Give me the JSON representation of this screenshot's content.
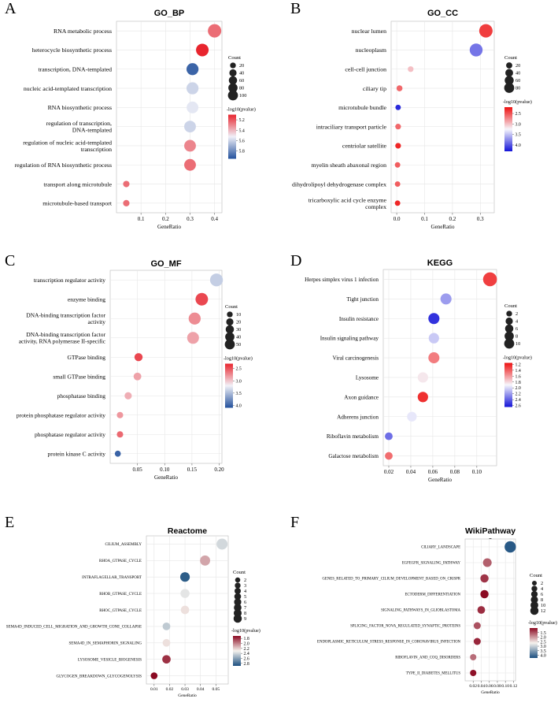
{
  "panels": [
    {
      "id": "A",
      "label": "A",
      "chart_data": {
        "type": "scatter",
        "title": "GO_BP",
        "xlabel": "GeneRatio",
        "xlim": [
          0,
          0.43
        ],
        "xticks": [
          0.1,
          0.2,
          0.3,
          0.4
        ],
        "xtick_labels": [
          "0.1",
          "0.2",
          "0.3",
          "0.4"
        ],
        "categories": [
          "RNA metabolic process",
          "heterocycle biosynthetic process",
          "transcription, DNA-templated",
          "nucleic acid-templated transcription",
          "RNA biosynthetic process",
          "regulation of transcription, DNA-templated",
          "regulation of nucleic acid-templated transcription",
          "regulation of RNA biosynthetic process",
          "transport along microtubule",
          "microtubule-based transport"
        ],
        "points": [
          {
            "x": 0.4,
            "count": 100,
            "logp": 5.25
          },
          {
            "x": 0.35,
            "count": 85,
            "logp": 5.05
          },
          {
            "x": 0.31,
            "count": 75,
            "logp": 5.9
          },
          {
            "x": 0.31,
            "count": 75,
            "logp": 5.6
          },
          {
            "x": 0.31,
            "count": 70,
            "logp": 5.55
          },
          {
            "x": 0.3,
            "count": 70,
            "logp": 5.6
          },
          {
            "x": 0.3,
            "count": 70,
            "logp": 5.3
          },
          {
            "x": 0.3,
            "count": 70,
            "logp": 5.25
          },
          {
            "x": 0.04,
            "count": 10,
            "logp": 5.25
          },
          {
            "x": 0.04,
            "count": 10,
            "logp": 5.25
          }
        ],
        "size_legend": {
          "title": "Count",
          "labels": [
            "20",
            "40",
            "60",
            "80",
            "100"
          ],
          "values": [
            20,
            40,
            60,
            80,
            100
          ]
        },
        "color_legend": {
          "title": "-log10(pvalue)",
          "labels": [
            "5.2",
            "5.4",
            "5.6",
            "5.8"
          ],
          "values": [
            5.2,
            5.4,
            5.6,
            5.8
          ],
          "range": [
            5.1,
            5.95
          ],
          "low_color": "#e8252e",
          "mid_color": "#f0f0f8",
          "high_color": "#23519c"
        }
      }
    },
    {
      "id": "B",
      "label": "B",
      "chart_data": {
        "type": "scatter",
        "title": "GO_CC",
        "xlabel": "GeneRatio",
        "xlim": [
          -0.02,
          0.35
        ],
        "xticks": [
          0.0,
          0.1,
          0.2,
          0.3
        ],
        "xtick_labels": [
          "0.0",
          "0.1",
          "0.2",
          "0.3"
        ],
        "categories": [
          "nuclear lumen",
          "nucleoplasm",
          "cell-cell junction",
          "ciliary tip",
          "microtubule bundle",
          "intraciliary transport particle",
          "centriolar satellite",
          "myelin sheath abaxonal region",
          "dihydrolipoyl dehydrogenase complex",
          "tricarboxylic acid cycle enzyme complex"
        ],
        "points": [
          {
            "x": 0.32,
            "count": 80,
            "logp": 2.4
          },
          {
            "x": 0.285,
            "count": 72,
            "logp": 3.85
          },
          {
            "x": 0.05,
            "count": 5,
            "logp": 3.0
          },
          {
            "x": 0.01,
            "count": 6,
            "logp": 2.6
          },
          {
            "x": 0.005,
            "count": 4,
            "logp": 4.2
          },
          {
            "x": 0.005,
            "count": 5,
            "logp": 2.6
          },
          {
            "x": 0.005,
            "count": 5,
            "logp": 2.3
          },
          {
            "x": 0.003,
            "count": 4,
            "logp": 2.55
          },
          {
            "x": 0.003,
            "count": 4,
            "logp": 2.55
          },
          {
            "x": 0.003,
            "count": 4,
            "logp": 2.3
          }
        ],
        "size_legend": {
          "title": "Count",
          "labels": [
            "20",
            "40",
            "60",
            "80"
          ],
          "values": [
            20,
            40,
            60,
            80
          ]
        },
        "color_legend": {
          "title": "-log10(pvalue)",
          "labels": [
            "2.5",
            "3.0",
            "3.5",
            "4.0"
          ],
          "values": [
            2.5,
            3.0,
            3.5,
            4.0
          ],
          "range": [
            2.2,
            4.3
          ],
          "low_color": "#ee1111",
          "mid_color": "#f6f6fc",
          "high_color": "#1414d8"
        }
      }
    },
    {
      "id": "C",
      "label": "C",
      "chart_data": {
        "type": "scatter",
        "title": "GO_MF",
        "xlabel": "GeneRatio",
        "xlim": [
          0,
          0.205
        ],
        "xticks": [
          0.05,
          0.1,
          0.15,
          0.2
        ],
        "xtick_labels": [
          "0.05",
          "0.10",
          "0.15",
          "0.20"
        ],
        "categories": [
          "transcription regulator activity",
          "enzyme binding",
          "DNA-binding transcription factor activity",
          "DNA-binding transcription factor activity, RNA polymerase II-specific",
          "GTPase binding",
          "small GTPase binding",
          "phosphatase binding",
          "protein phosphatase regulator activity",
          "phosphatase regulator activity",
          "protein kinase C activity"
        ],
        "points": [
          {
            "x": 0.195,
            "count": 45,
            "logp": 3.4
          },
          {
            "x": 0.168,
            "count": 42,
            "logp": 2.45
          },
          {
            "x": 0.155,
            "count": 38,
            "logp": 2.75
          },
          {
            "x": 0.152,
            "count": 36,
            "logp": 2.85
          },
          {
            "x": 0.052,
            "count": 12,
            "logp": 2.45
          },
          {
            "x": 0.05,
            "count": 10,
            "logp": 2.85
          },
          {
            "x": 0.033,
            "count": 8,
            "logp": 2.9
          },
          {
            "x": 0.018,
            "count": 5,
            "logp": 2.8
          },
          {
            "x": 0.018,
            "count": 5,
            "logp": 2.6
          },
          {
            "x": 0.014,
            "count": 4,
            "logp": 4.0
          }
        ],
        "size_legend": {
          "title": "Count",
          "labels": [
            "10",
            "20",
            "30",
            "40",
            "50"
          ],
          "values": [
            10,
            20,
            30,
            40,
            50
          ]
        },
        "color_legend": {
          "title": "-log10(pvalue)",
          "labels": [
            "2.5",
            "3.0",
            "3.5",
            "4.0"
          ],
          "values": [
            2.5,
            3.0,
            3.5,
            4.0
          ],
          "range": [
            2.3,
            4.1
          ],
          "low_color": "#e8252e",
          "mid_color": "#f2f2f8",
          "high_color": "#23519c"
        }
      }
    },
    {
      "id": "D",
      "label": "D",
      "chart_data": {
        "type": "scatter",
        "title": "KEGG",
        "xlabel": "GeneRatio",
        "xlim": [
          0.015,
          0.118
        ],
        "xticks": [
          0.02,
          0.04,
          0.06,
          0.08,
          0.1
        ],
        "xtick_labels": [
          "0.02",
          "0.04",
          "0.06",
          "0.08",
          "0.10"
        ],
        "categories": [
          "Herpes simplex virus 1 infection",
          "Tight junction",
          "Insulin resistance",
          "Insulin signaling pathway",
          "Viral carcinogenesis",
          "Lysosome",
          "Axon guidance",
          "Adherens junction",
          "Riboflavin metabolism",
          "Galactose metabolism"
        ],
        "points": [
          {
            "x": 0.112,
            "count": 11,
            "logp": 1.3
          },
          {
            "x": 0.072,
            "count": 6,
            "logp": 2.2
          },
          {
            "x": 0.061,
            "count": 6,
            "logp": 2.55
          },
          {
            "x": 0.061,
            "count": 5,
            "logp": 2.05
          },
          {
            "x": 0.061,
            "count": 6,
            "logp": 1.5
          },
          {
            "x": 0.051,
            "count": 5,
            "logp": 1.85
          },
          {
            "x": 0.051,
            "count": 5,
            "logp": 1.25
          },
          {
            "x": 0.041,
            "count": 4,
            "logp": 1.95
          },
          {
            "x": 0.02,
            "count": 2,
            "logp": 2.35
          },
          {
            "x": 0.02,
            "count": 2,
            "logp": 1.45
          }
        ],
        "size_legend": {
          "title": "Count",
          "labels": [
            "2",
            "4",
            "6",
            "8",
            "10"
          ],
          "values": [
            2,
            4,
            6,
            8,
            10
          ]
        },
        "color_legend": {
          "title": "-log10(pvalue)",
          "labels": [
            "1.2",
            "1.4",
            "1.6",
            "1.8",
            "2.0",
            "2.2",
            "2.4",
            "2.6"
          ],
          "values": [
            1.2,
            1.4,
            1.6,
            1.8,
            2.0,
            2.2,
            2.4,
            2.6
          ],
          "range": [
            1.15,
            2.65
          ],
          "low_color": "#ee1111",
          "mid_color": "#f6f6fc",
          "high_color": "#1414d8"
        }
      }
    },
    {
      "id": "E",
      "label": "E",
      "chart_data": {
        "type": "scatter",
        "title": "Reactome",
        "xlabel": "GeneRatio",
        "xlim": [
          0.005,
          0.058
        ],
        "xticks": [
          0.01,
          0.02,
          0.03,
          0.04,
          0.05
        ],
        "xtick_labels": [
          "0.01",
          "0.02",
          "0.03",
          "0.04",
          "0.05"
        ],
        "categories": [
          "CILIUM_ASSEMBLY",
          "RHOA_GTPASE_CYCLE",
          "INTRAFLAGELLAR_TRANSPORT",
          "RHOB_GTPASE_CYCLE",
          "RHOC_GTPASE_CYCLE",
          "SEMA4D_INDUCED_CELL_MIGRATION_AND_GROWTH_CONE_COLLAPSE",
          "SEMA4D_IN_SEMAPHORIN_SIGNALING",
          "LYSOSOME_VESICLE_BIOGENESIS",
          "GLYCOGEN_BREAKDOWN_GLYCOGENOLYSIS"
        ],
        "points": [
          {
            "x": 0.054,
            "count": 9,
            "logp": 2.4
          },
          {
            "x": 0.043,
            "count": 7,
            "logp": 2.1
          },
          {
            "x": 0.03,
            "count": 6,
            "logp": 2.85
          },
          {
            "x": 0.03,
            "count": 5,
            "logp": 2.35
          },
          {
            "x": 0.03,
            "count": 4,
            "logp": 2.25
          },
          {
            "x": 0.018,
            "count": 3,
            "logp": 2.45
          },
          {
            "x": 0.018,
            "count": 3,
            "logp": 2.25
          },
          {
            "x": 0.018,
            "count": 4,
            "logp": 1.8
          },
          {
            "x": 0.01,
            "count": 2,
            "logp": 1.7
          }
        ],
        "size_legend": {
          "title": "Count",
          "labels": [
            "2",
            "3",
            "4",
            "5",
            "6",
            "7",
            "8",
            "9"
          ],
          "values": [
            2,
            3,
            4,
            5,
            6,
            7,
            8,
            9
          ]
        },
        "color_legend": {
          "title": "-log10(pvalue)",
          "labels": [
            "1.8",
            "2.0",
            "2.2",
            "2.4",
            "2.6",
            "2.8"
          ],
          "values": [
            1.8,
            2.0,
            2.2,
            2.4,
            2.6,
            2.8
          ],
          "range": [
            1.7,
            2.9
          ],
          "low_color": "#8b0a22",
          "mid_color": "#f6f3ee",
          "high_color": "#1b4f7f"
        }
      }
    },
    {
      "id": "F",
      "label": "F",
      "chart_data": {
        "type": "scatter",
        "title": "WikiPathway",
        "title_overflow": "s",
        "xlabel": "GeneRatio",
        "xlim": [
          0.0,
          0.125
        ],
        "xticks": [
          0.02,
          0.04,
          0.06,
          0.08,
          0.1,
          0.12
        ],
        "xtick_labels": [
          "0.02",
          "0.04",
          "0.06",
          "0.08",
          "0.10",
          "0.12"
        ],
        "categories": [
          "CILIARY_LANDSCAPE",
          "EGFEGFR_SIGNALING_PATHWAY",
          "GENES_RELATED_TO_PRIMARY_CILIUM_DEVELOPMENT_BASED_ON_CRISPR",
          "ECTODERM_DIFFERENTIATION",
          "SIGNALING_PATHWAYS_IN_GLIOBLASTOMA",
          "SPLICING_FACTOR_NOVA_REGULATED_SYNAPTIC_PROTEINS",
          "ENDOPLASMIC_RETICULUM_STRESS_RESPONSE_IN_CORONAVIRUS_INFECTION",
          "RIBOFLAVIN_AND_COQ_DISORDERS",
          "TYPE_II_DIABETES_MELLITUS"
        ],
        "points": [
          {
            "x": 0.112,
            "count": 13,
            "logp": 4.2
          },
          {
            "x": 0.055,
            "count": 6,
            "logp": 1.6
          },
          {
            "x": 0.048,
            "count": 5,
            "logp": 1.3
          },
          {
            "x": 0.048,
            "count": 5,
            "logp": 1.0
          },
          {
            "x": 0.04,
            "count": 4,
            "logp": 1.25
          },
          {
            "x": 0.03,
            "count": 3,
            "logp": 1.5
          },
          {
            "x": 0.03,
            "count": 3,
            "logp": 1.2
          },
          {
            "x": 0.02,
            "count": 2,
            "logp": 1.7
          },
          {
            "x": 0.02,
            "count": 2,
            "logp": 1.05
          }
        ],
        "size_legend": {
          "title": "Count",
          "labels": [
            "2",
            "4",
            "6",
            "8",
            "10",
            "12"
          ],
          "values": [
            2,
            4,
            6,
            8,
            10,
            12
          ]
        },
        "color_legend": {
          "title": "-log10(pvalue)",
          "labels": [
            "1.5",
            "2.0",
            "2.5",
            "3.0",
            "3.5",
            "4.0"
          ],
          "values": [
            1.5,
            2.0,
            2.5,
            3.0,
            3.5,
            4.0
          ],
          "range": [
            1.0,
            4.3
          ],
          "low_color": "#8b0a22",
          "mid_color": "#f6f3ee",
          "high_color": "#1b4f7f"
        }
      }
    }
  ]
}
